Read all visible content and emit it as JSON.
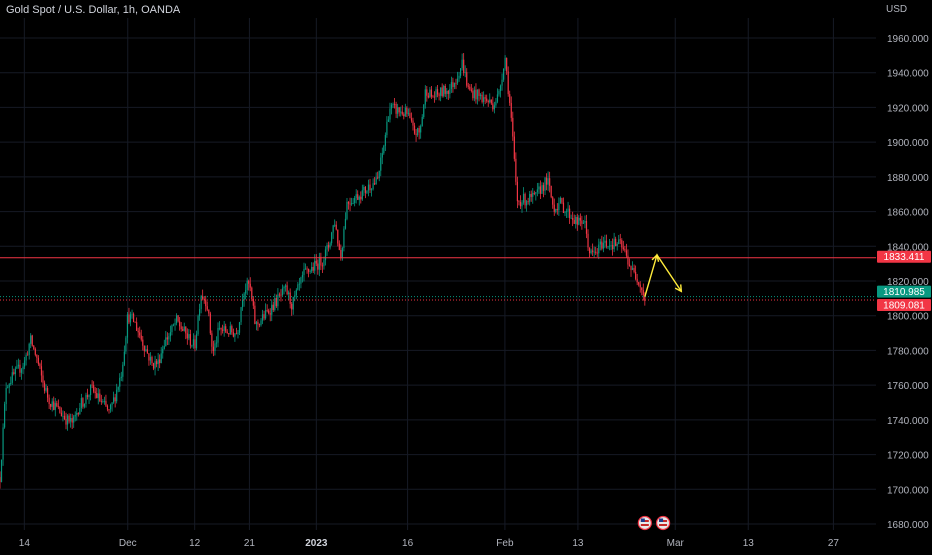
{
  "header": {
    "title": "Gold Spot / U.S. Dollar, 1h, OANDA",
    "currency": "USD"
  },
  "chart_data": {
    "type": "candlestick",
    "ylim": [
      1675,
      1975
    ],
    "y_ticks": [
      1680,
      1700,
      1720,
      1740,
      1760,
      1780,
      1800,
      1820,
      1840,
      1860,
      1880,
      1900,
      1920,
      1940,
      1960
    ],
    "y_tick_labels": [
      "1680.000",
      "1700.000",
      "1720.000",
      "1740.000",
      "1760.000",
      "1780.000",
      "1800.000",
      "1820.000",
      "1840.000",
      "1860.000",
      "1880.000",
      "1900.000",
      "1920.000",
      "1940.000",
      "1960.000"
    ],
    "x_ticks": [
      "14",
      "Dec",
      "12",
      "21",
      "2023",
      "16",
      "Feb",
      "13",
      "Mar",
      "13",
      "27"
    ],
    "x_dates": [
      "2022-11-14",
      "2022-12-01",
      "2022-12-12",
      "2022-12-21",
      "2023-01-01",
      "2023-01-16",
      "2023-02-01",
      "2023-02-13",
      "2023-03-01",
      "2023-03-13",
      "2023-03-27"
    ],
    "x_range": [
      "2022-11-10",
      "2023-04-03"
    ],
    "price_path": [
      [
        "2022-11-10",
        1707
      ],
      [
        "2022-11-11",
        1760
      ],
      [
        "2022-11-14",
        1773
      ],
      [
        "2022-11-15",
        1786
      ],
      [
        "2022-11-16",
        1776
      ],
      [
        "2022-11-17",
        1762
      ],
      [
        "2022-11-18",
        1752
      ],
      [
        "2022-11-21",
        1740
      ],
      [
        "2022-11-22",
        1738
      ],
      [
        "2022-11-23",
        1748
      ],
      [
        "2022-11-24",
        1752
      ],
      [
        "2022-11-25",
        1758
      ],
      [
        "2022-11-28",
        1744
      ],
      [
        "2022-11-29",
        1755
      ],
      [
        "2022-11-30",
        1768
      ],
      [
        "2022-12-01",
        1800
      ],
      [
        "2022-12-02",
        1797
      ],
      [
        "2022-12-05",
        1772
      ],
      [
        "2022-12-06",
        1773
      ],
      [
        "2022-12-07",
        1785
      ],
      [
        "2022-12-08",
        1790
      ],
      [
        "2022-12-09",
        1797
      ],
      [
        "2022-12-12",
        1782
      ],
      [
        "2022-12-13",
        1813
      ],
      [
        "2022-12-14",
        1808
      ],
      [
        "2022-12-15",
        1778
      ],
      [
        "2022-12-16",
        1792
      ],
      [
        "2022-12-19",
        1790
      ],
      [
        "2022-12-20",
        1815
      ],
      [
        "2022-12-21",
        1818
      ],
      [
        "2022-12-22",
        1794
      ],
      [
        "2022-12-23",
        1798
      ],
      [
        "2022-12-27",
        1815
      ],
      [
        "2022-12-28",
        1806
      ],
      [
        "2022-12-29",
        1815
      ],
      [
        "2022-12-30",
        1824
      ],
      [
        "2023-01-02",
        1832
      ],
      [
        "2023-01-03",
        1840
      ],
      [
        "2023-01-04",
        1855
      ],
      [
        "2023-01-05",
        1833
      ],
      [
        "2023-01-06",
        1865
      ],
      [
        "2023-01-09",
        1872
      ],
      [
        "2023-01-10",
        1876
      ],
      [
        "2023-01-11",
        1877
      ],
      [
        "2023-01-12",
        1896
      ],
      [
        "2023-01-13",
        1920
      ],
      [
        "2023-01-16",
        1916
      ],
      [
        "2023-01-17",
        1906
      ],
      [
        "2023-01-18",
        1905
      ],
      [
        "2023-01-19",
        1931
      ],
      [
        "2023-01-20",
        1926
      ],
      [
        "2023-01-23",
        1931
      ],
      [
        "2023-01-24",
        1937
      ],
      [
        "2023-01-25",
        1946
      ],
      [
        "2023-01-26",
        1930
      ],
      [
        "2023-01-27",
        1928
      ],
      [
        "2023-01-30",
        1922
      ],
      [
        "2023-01-31",
        1927
      ],
      [
        "2023-02-01",
        1950
      ],
      [
        "2023-02-02",
        1915
      ],
      [
        "2023-02-03",
        1866
      ],
      [
        "2023-02-06",
        1868
      ],
      [
        "2023-02-07",
        1874
      ],
      [
        "2023-02-08",
        1878
      ],
      [
        "2023-02-09",
        1862
      ],
      [
        "2023-02-10",
        1865
      ],
      [
        "2023-02-13",
        1853
      ],
      [
        "2023-02-14",
        1855
      ],
      [
        "2023-02-15",
        1835
      ],
      [
        "2023-02-16",
        1836
      ],
      [
        "2023-02-17",
        1842
      ],
      [
        "2023-02-20",
        1841
      ],
      [
        "2023-02-21",
        1834
      ],
      [
        "2023-02-22",
        1825
      ],
      [
        "2023-02-23",
        1821
      ],
      [
        "2023-02-24",
        1810
      ]
    ],
    "horizontal_lines": [
      {
        "label": "1833.411",
        "value": 1833.411,
        "color": "#f23645",
        "style": "solid"
      },
      {
        "label": "1810.985",
        "value": 1810.985,
        "color": "#089981",
        "style": "dotted"
      },
      {
        "label": "1809.081",
        "value": 1809.081,
        "color": "#f23645",
        "style": "dotted"
      }
    ],
    "projection_arrow": {
      "color": "#ffeb3b",
      "points": [
        [
          "2023-02-24",
          1811
        ],
        [
          "2023-02-26",
          1835
        ],
        [
          "2023-03-02",
          1814
        ]
      ]
    },
    "event_markers": [
      {
        "date": "2023-02-24",
        "icon": "us-flag-icon"
      },
      {
        "date": "2023-02-27",
        "icon": "us-flag-icon"
      }
    ],
    "colors": {
      "up": "#089981",
      "down": "#f23645",
      "background": "#000000",
      "grid": "#161a25",
      "axis_text": "#b2b5be"
    },
    "grid": true
  }
}
